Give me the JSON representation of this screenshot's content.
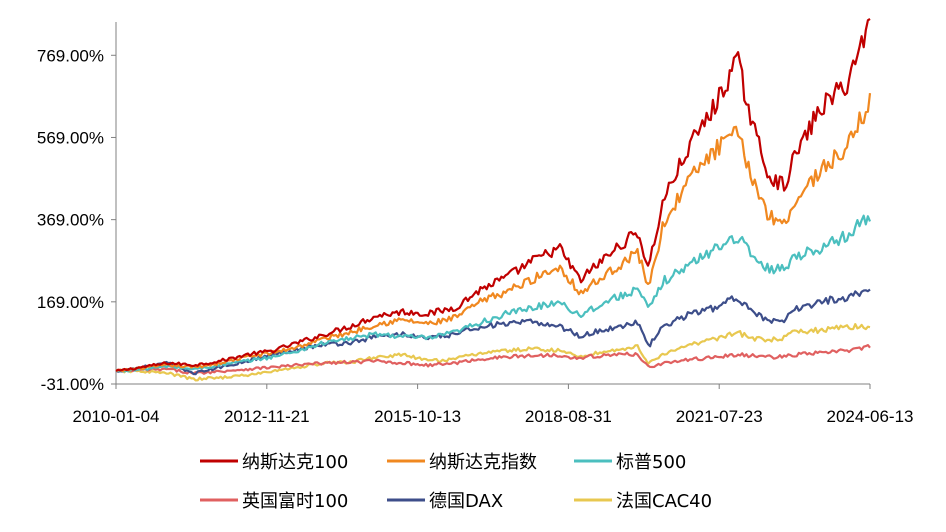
{
  "chart_data": {
    "type": "line",
    "title": "",
    "xlabel": "",
    "ylabel": "",
    "y_unit": "%",
    "ylim": [
      -31,
      850
    ],
    "y_ticks": [
      "769.00%",
      "569.00%",
      "369.00%",
      "169.00%",
      "-31.00%"
    ],
    "y_tick_values": [
      769,
      569,
      369,
      169,
      -31
    ],
    "x_tick_labels": [
      "2010-01-04",
      "2012-11-21",
      "2015-10-13",
      "2018-08-31",
      "2021-07-23",
      "2024-06-13"
    ],
    "x_range": [
      "2010-01-04",
      "2024-06-13"
    ],
    "grid": false,
    "legend_position": "bottom",
    "x": [
      2010.0,
      2010.5,
      2011.0,
      2011.5,
      2012.0,
      2012.5,
      2013.0,
      2013.5,
      2014.0,
      2014.5,
      2015.0,
      2015.5,
      2016.0,
      2016.5,
      2017.0,
      2017.5,
      2018.0,
      2018.5,
      2018.9,
      2019.0,
      2019.5,
      2020.0,
      2020.2,
      2020.5,
      2021.0,
      2021.5,
      2021.9,
      2022.2,
      2022.5,
      2022.8,
      2023.0,
      2023.5,
      2024.0,
      2024.45
    ],
    "series": [
      {
        "name": "纳斯达克100",
        "color": "#C00000",
        "values": [
          0,
          10,
          20,
          15,
          25,
          40,
          50,
          70,
          90,
          110,
          135,
          145,
          140,
          155,
          200,
          230,
          270,
          300,
          220,
          235,
          290,
          340,
          250,
          420,
          550,
          650,
          760,
          600,
          480,
          450,
          520,
          640,
          700,
          850
        ]
      },
      {
        "name": "纳斯达克指数",
        "color": "#F08820",
        "values": [
          0,
          8,
          15,
          10,
          20,
          35,
          45,
          60,
          80,
          95,
          115,
          125,
          115,
          130,
          170,
          195,
          225,
          255,
          190,
          200,
          245,
          290,
          205,
          360,
          470,
          540,
          580,
          470,
          380,
          360,
          410,
          490,
          540,
          660
        ]
      },
      {
        "name": "标普500",
        "color": "#4BBFBF",
        "values": [
          0,
          5,
          12,
          5,
          15,
          25,
          35,
          50,
          70,
          80,
          90,
          85,
          80,
          95,
          120,
          140,
          155,
          170,
          135,
          145,
          175,
          200,
          150,
          220,
          260,
          300,
          330,
          280,
          250,
          250,
          280,
          300,
          330,
          380
        ]
      },
      {
        "name": "英国富时100",
        "color": "#E06060",
        "values": [
          0,
          3,
          5,
          -5,
          0,
          5,
          10,
          15,
          20,
          22,
          25,
          20,
          15,
          20,
          30,
          35,
          38,
          40,
          30,
          35,
          40,
          42,
          10,
          20,
          28,
          35,
          40,
          38,
          35,
          35,
          40,
          45,
          50,
          60
        ]
      },
      {
        "name": "德国DAX",
        "color": "#3D4E8A",
        "values": [
          0,
          10,
          20,
          -5,
          10,
          25,
          40,
          55,
          65,
          70,
          85,
          90,
          80,
          90,
          110,
          115,
          120,
          110,
          85,
          90,
          105,
          120,
          60,
          110,
          140,
          155,
          180,
          150,
          120,
          120,
          150,
          170,
          180,
          200
        ]
      },
      {
        "name": "法国CAC40",
        "color": "#E8C850",
        "values": [
          0,
          0,
          -5,
          -20,
          -15,
          -10,
          0,
          10,
          20,
          22,
          35,
          40,
          25,
          30,
          45,
          50,
          55,
          50,
          35,
          40,
          50,
          60,
          20,
          40,
          65,
          80,
          95,
          80,
          75,
          80,
          95,
          100,
          110,
          105
        ]
      }
    ]
  }
}
